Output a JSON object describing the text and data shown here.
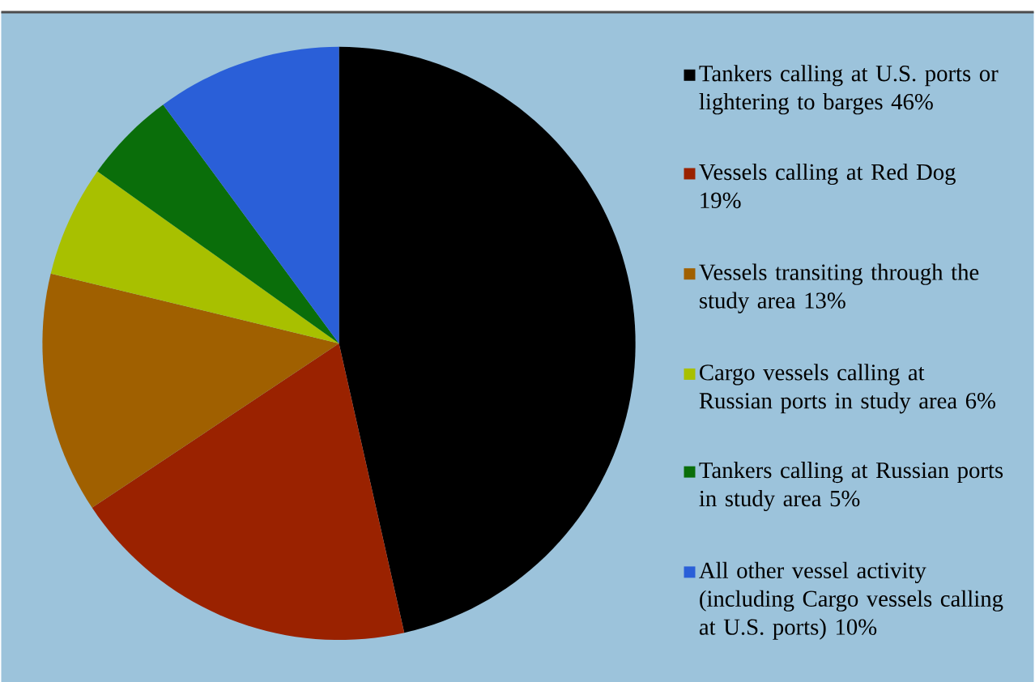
{
  "chart_data": {
    "type": "pie",
    "categories": [
      "Tankers calling at U.S. ports or lightering to barges",
      "Vessels calling at Red Dog",
      "Vessels transiting through the study area",
      "Cargo vessels calling at Russian ports in study area",
      "Tankers calling at Russian ports in study area",
      "All other vessel activity (including Cargo vessels calling at U.S. ports)"
    ],
    "values": [
      46,
      19,
      13,
      6,
      5,
      10
    ],
    "value_labels": [
      "46%",
      "19%",
      "13%",
      "6%",
      "5%",
      "10%"
    ],
    "colors": [
      "#000000",
      "#9a2200",
      "#a06000",
      "#a8c000",
      "#0a6e0a",
      "#2a5fd8"
    ],
    "legend": "right"
  }
}
